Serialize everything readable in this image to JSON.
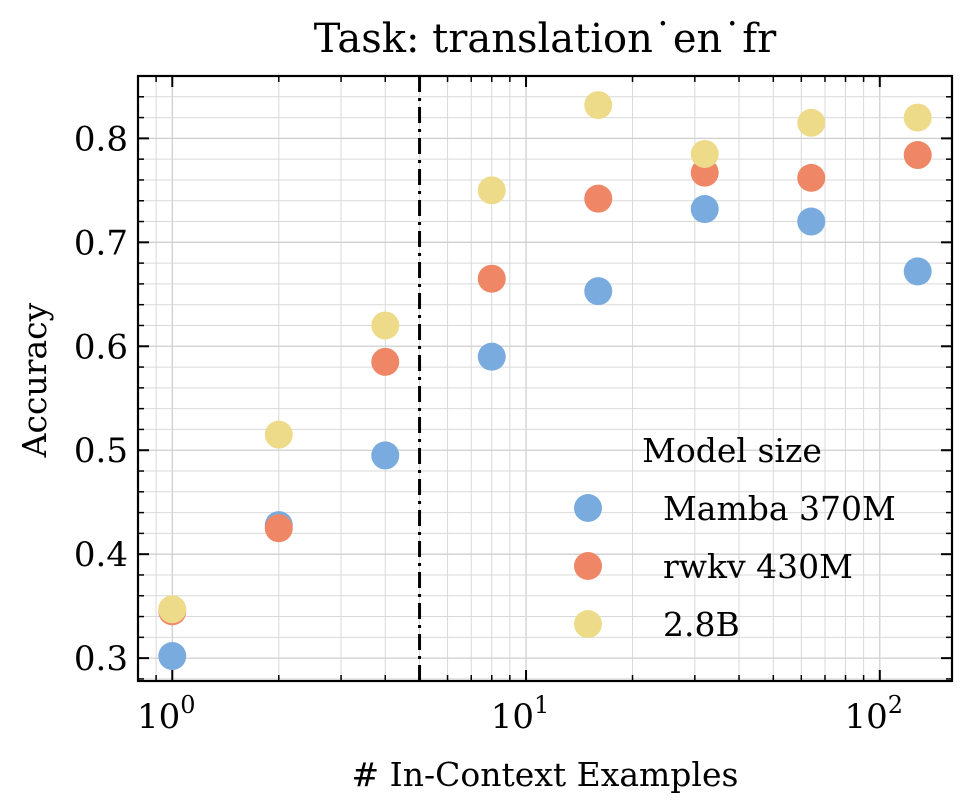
{
  "chart_data": {
    "type": "scatter",
    "title": "Task: translation˙en˙fr",
    "xlabel": "# In-Context Examples",
    "ylabel": "Accuracy",
    "xscale": "log",
    "xlim": [
      0.8,
      160
    ],
    "ylim": [
      0.278,
      0.86
    ],
    "x_ticks": [
      {
        "value": 1,
        "base": "10",
        "exp": "0"
      },
      {
        "value": 10,
        "base": "10",
        "exp": "1"
      },
      {
        "value": 100,
        "base": "10",
        "exp": "2"
      }
    ],
    "y_ticks": [
      {
        "value": 0.3,
        "label": "0.3"
      },
      {
        "value": 0.4,
        "label": "0.4"
      },
      {
        "value": 0.5,
        "label": "0.5"
      },
      {
        "value": 0.6,
        "label": "0.6"
      },
      {
        "value": 0.7,
        "label": "0.7"
      },
      {
        "value": 0.8,
        "label": "0.8"
      }
    ],
    "grid": true,
    "vline": {
      "x": 5,
      "style": "dash-dot",
      "color": "#000000"
    },
    "x": [
      1,
      2,
      4,
      8,
      16,
      32,
      64,
      128
    ],
    "series": [
      {
        "name": "Mamba 370M",
        "color": "#7aabde",
        "values": [
          0.302,
          0.428,
          0.495,
          0.59,
          0.653,
          0.732,
          0.72,
          0.672
        ]
      },
      {
        "name": "rwkv 430M",
        "color": "#ef8766",
        "values": [
          0.345,
          0.425,
          0.585,
          0.665,
          0.742,
          0.767,
          0.762,
          0.784
        ]
      },
      {
        "name": "2.8B",
        "color": "#eedb8a",
        "values": [
          0.347,
          0.515,
          0.62,
          0.75,
          0.832,
          0.785,
          0.815,
          0.82
        ]
      }
    ],
    "legend": {
      "title": "Model size",
      "placement": "bottom-right"
    }
  }
}
